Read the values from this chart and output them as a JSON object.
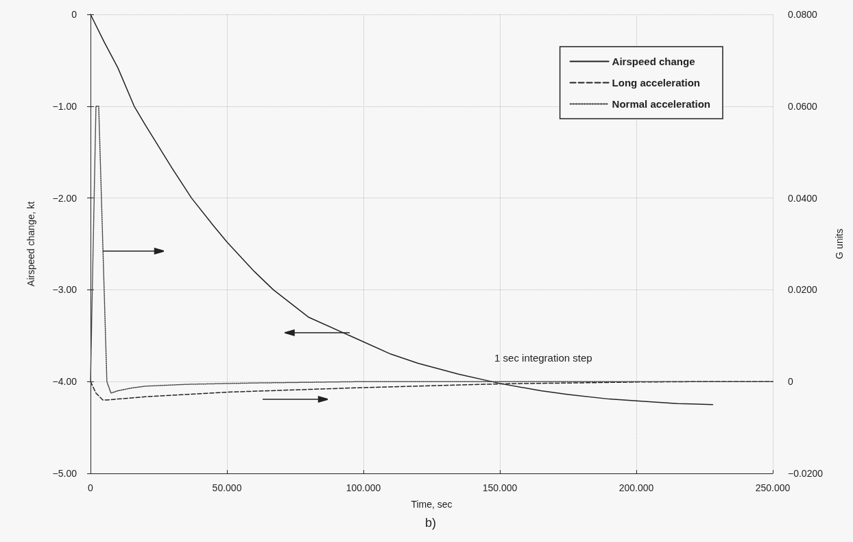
{
  "chart_data": {
    "type": "line",
    "xlabel": "Time, sec",
    "ylabel": "Airspeed change, kt",
    "y2label": "G units",
    "xlim": [
      0,
      250
    ],
    "xticks": [
      0,
      {
        "value": 50,
        "label": "50.000"
      },
      {
        "value": 100,
        "label": "100.000"
      },
      {
        "value": 150,
        "label": "150.000"
      },
      {
        "value": 200,
        "label": "200.000"
      },
      {
        "value": 250,
        "label": "250.000"
      }
    ],
    "ylim": [
      -5,
      0
    ],
    "yticks": [
      {
        "value": -5,
        "label": "−5.00"
      },
      {
        "value": -4,
        "label": "−4.00"
      },
      {
        "value": -3,
        "label": "−3.00"
      },
      {
        "value": -2,
        "label": "−2.00"
      },
      {
        "value": -1,
        "label": "−1.00"
      },
      0
    ],
    "y2lim": [
      -0.02,
      0.08
    ],
    "y2ticks": [
      {
        "value": -0.02,
        "label": "−0.0200"
      },
      0,
      {
        "value": 0.02,
        "label": "0.0200"
      },
      {
        "value": 0.04,
        "label": "0.0400"
      },
      {
        "value": 0.06,
        "label": "0.0600"
      },
      {
        "value": 0.08,
        "label": "0.0800"
      }
    ],
    "grid": true,
    "legend": "top right",
    "marker": "none",
    "annotations": [
      "1 sec integration step",
      "b)"
    ],
    "series": [
      {
        "name": "Airspeed change",
        "color": "#222222",
        "line_style": "solid",
        "x": [
          0,
          5,
          10,
          16,
          20,
          30,
          37,
          45,
          50,
          60,
          67,
          80,
          95,
          110,
          120,
          135,
          150,
          165,
          175,
          190,
          200,
          215,
          228
        ],
        "values": [
          0,
          -0.3,
          -0.58,
          -1.0,
          -1.2,
          -1.68,
          -2.0,
          -2.3,
          -2.48,
          -2.8,
          -3.0,
          -3.3,
          -3.5,
          -3.7,
          -3.8,
          -3.92,
          -4.02,
          -4.1,
          -4.14,
          -4.19,
          -4.21,
          -4.24,
          -4.25
        ]
      },
      {
        "name": "Long acceleration",
        "color": "#222222",
        "line_style": "dashed",
        "axis": "y2",
        "x": [
          0,
          2,
          4.5,
          6,
          10,
          20,
          35,
          50,
          75,
          100,
          125,
          150,
          175,
          200,
          225,
          250
        ],
        "values": [
          0,
          -0.0025,
          -0.004,
          -0.004,
          -0.0038,
          -0.0033,
          -0.0028,
          -0.0023,
          -0.0018,
          -0.0013,
          -0.0009,
          -0.0005,
          -0.0003,
          -0.0001,
          0,
          0
        ]
      },
      {
        "name": "Normal acceleration",
        "color": "#444444",
        "line_style": "dotted",
        "axis": "y2",
        "x": [
          0,
          1,
          2,
          3,
          4,
          5,
          6,
          7.5,
          10,
          15,
          20,
          35,
          60,
          100,
          150,
          200,
          250
        ],
        "values": [
          0,
          0.03,
          0.06,
          0.06,
          0.04,
          0.02,
          0,
          -0.0025,
          -0.002,
          -0.0014,
          -0.001,
          -0.0006,
          -0.0003,
          0,
          0,
          0,
          0
        ]
      }
    ]
  }
}
